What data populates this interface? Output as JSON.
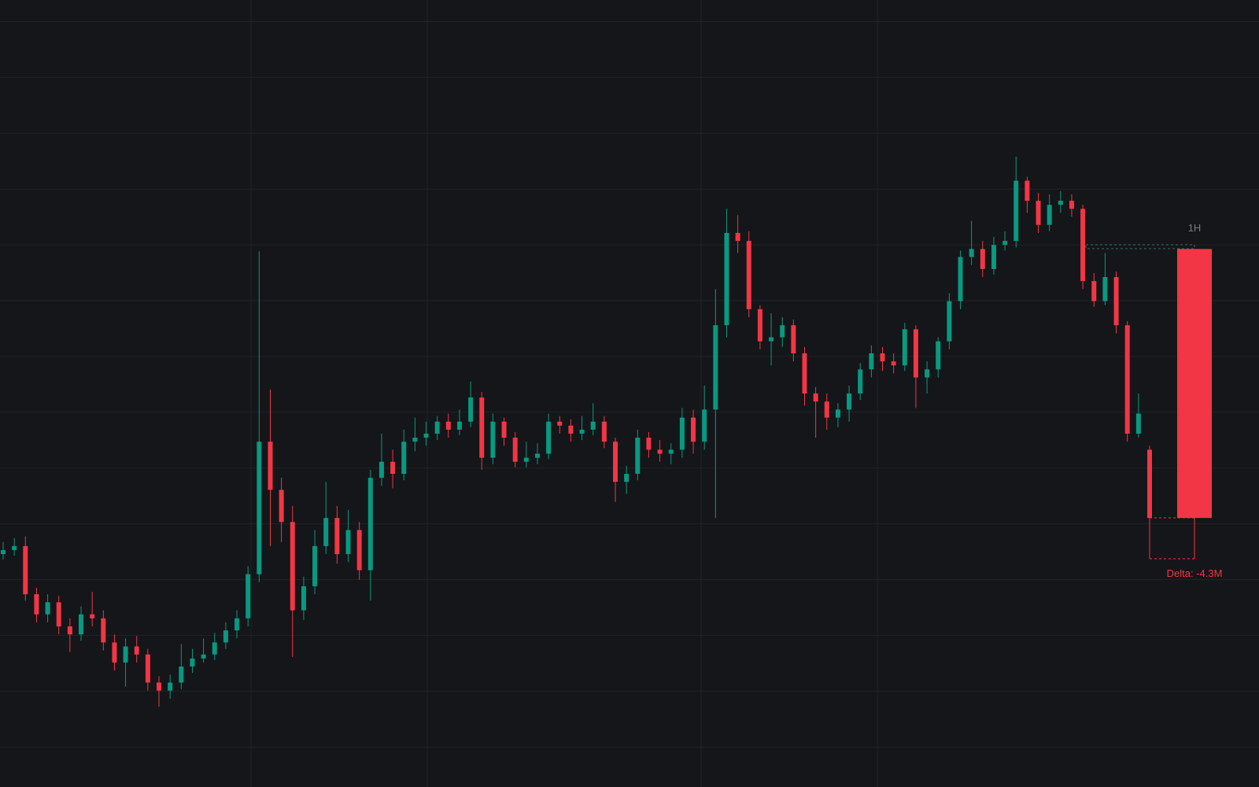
{
  "chart_data": {
    "type": "candlestick",
    "up_color": "#089981",
    "down_color": "#f23645",
    "ylim": [
      0,
      980
    ],
    "grid": true,
    "open": [
      290,
      295,
      300,
      240,
      215,
      230,
      200,
      190,
      215,
      210,
      180,
      155,
      175,
      165,
      130,
      120,
      130,
      150,
      160,
      165,
      180,
      195,
      210,
      265,
      430,
      370,
      330,
      220,
      250,
      300,
      335,
      290,
      320,
      270,
      385,
      405,
      390,
      430,
      435,
      440,
      455,
      445,
      455,
      485,
      410,
      455,
      435,
      405,
      410,
      415,
      455,
      450,
      440,
      445,
      455,
      430,
      380,
      390,
      435,
      420,
      415,
      420,
      460,
      430,
      470,
      575,
      690,
      680,
      595,
      555,
      560,
      575,
      540,
      490,
      480,
      460,
      470,
      490,
      520,
      540,
      530,
      525,
      570,
      510,
      520,
      555,
      605,
      660,
      670,
      645,
      675,
      680,
      755,
      730,
      700,
      725,
      730,
      720,
      630,
      605,
      635,
      575,
      440,
      420
    ],
    "high": [
      305,
      310,
      312,
      248,
      240,
      238,
      210,
      225,
      243,
      220,
      190,
      185,
      188,
      172,
      138,
      140,
      178,
      172,
      185,
      192,
      205,
      220,
      275,
      667,
      495,
      385,
      350,
      262,
      320,
      380,
      350,
      345,
      330,
      395,
      440,
      420,
      445,
      460,
      455,
      462,
      465,
      470,
      505,
      492,
      465,
      460,
      442,
      430,
      428,
      465,
      462,
      458,
      462,
      478,
      462,
      435,
      400,
      445,
      442,
      432,
      428,
      472,
      470,
      500,
      620,
      720,
      712,
      692,
      600,
      590,
      585,
      582,
      548,
      498,
      490,
      478,
      500,
      528,
      550,
      548,
      540,
      578,
      575,
      530,
      560,
      615,
      668,
      705,
      680,
      685,
      692,
      785,
      760,
      740,
      738,
      742,
      738,
      725,
      640,
      665,
      642,
      580,
      490,
      425
    ],
    "low": [
      283,
      288,
      232,
      205,
      205,
      190,
      168,
      182,
      200,
      170,
      145,
      125,
      155,
      120,
      100,
      110,
      122,
      142,
      155,
      158,
      172,
      185,
      200,
      255,
      300,
      305,
      162,
      208,
      240,
      290,
      278,
      280,
      258,
      232,
      375,
      372,
      382,
      418,
      425,
      432,
      435,
      438,
      448,
      395,
      402,
      425,
      398,
      398,
      402,
      408,
      440,
      430,
      432,
      438,
      422,
      355,
      365,
      382,
      410,
      405,
      402,
      410,
      415,
      420,
      335,
      560,
      665,
      585,
      545,
      525,
      548,
      530,
      475,
      435,
      445,
      448,
      455,
      482,
      510,
      518,
      515,
      518,
      472,
      490,
      510,
      545,
      595,
      650,
      635,
      638,
      668,
      672,
      715,
      690,
      692,
      715,
      710,
      620,
      598,
      600,
      565,
      430,
      435,
      335
    ],
    "close": [
      295,
      300,
      240,
      215,
      230,
      200,
      190,
      215,
      210,
      180,
      155,
      175,
      165,
      130,
      120,
      130,
      150,
      160,
      165,
      180,
      195,
      210,
      265,
      430,
      370,
      330,
      220,
      250,
      300,
      335,
      290,
      320,
      270,
      385,
      405,
      390,
      430,
      435,
      440,
      455,
      445,
      455,
      485,
      410,
      455,
      435,
      405,
      410,
      415,
      455,
      450,
      440,
      445,
      455,
      430,
      380,
      390,
      435,
      420,
      415,
      420,
      460,
      430,
      470,
      575,
      690,
      680,
      595,
      555,
      560,
      575,
      540,
      490,
      480,
      460,
      470,
      490,
      520,
      540,
      530,
      525,
      570,
      510,
      520,
      555,
      605,
      660,
      670,
      645,
      675,
      680,
      755,
      730,
      700,
      725,
      730,
      720,
      630,
      605,
      635,
      575,
      440,
      465,
      335
    ],
    "aggregate": {
      "label": "1H",
      "open": 670,
      "close": 335,
      "annotation": "Delta: -4.3M"
    }
  }
}
